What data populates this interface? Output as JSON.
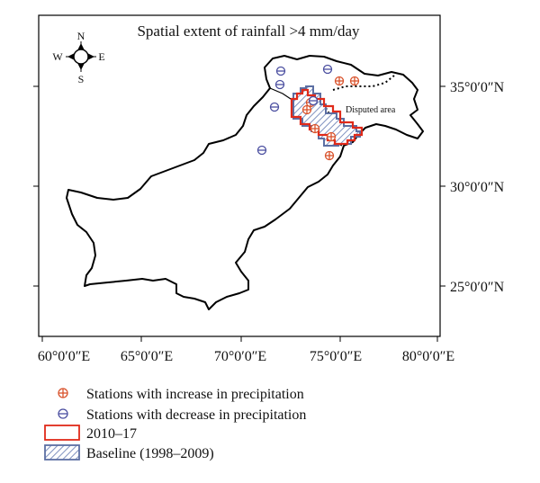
{
  "map": {
    "title": "Spatial extent of rainfall >4 mm/day",
    "x_ticks": [
      "60°0′0″E",
      "65°0′0″E",
      "70°0′0″E",
      "75°0′0″E",
      "80°0′0″E"
    ],
    "y_ticks": [
      "35°0′0″N",
      "30°0′0″N",
      "25°0′0″N"
    ],
    "compass": {
      "n": "N",
      "s": "S",
      "e": "E",
      "w": "W"
    },
    "disputed_label": "Disputed area",
    "colors": {
      "increase": "#d9532c",
      "decrease": "#4b4fa0",
      "period_2010_17": "#e02a1a",
      "baseline": "#5c6fa3"
    }
  },
  "legend": {
    "increase_label": "Stations with increase in precipitation",
    "decrease_label": "Stations with decrease in precipitation",
    "period_label": "2010–17",
    "baseline_label": "Baseline (1998–2009)"
  }
}
